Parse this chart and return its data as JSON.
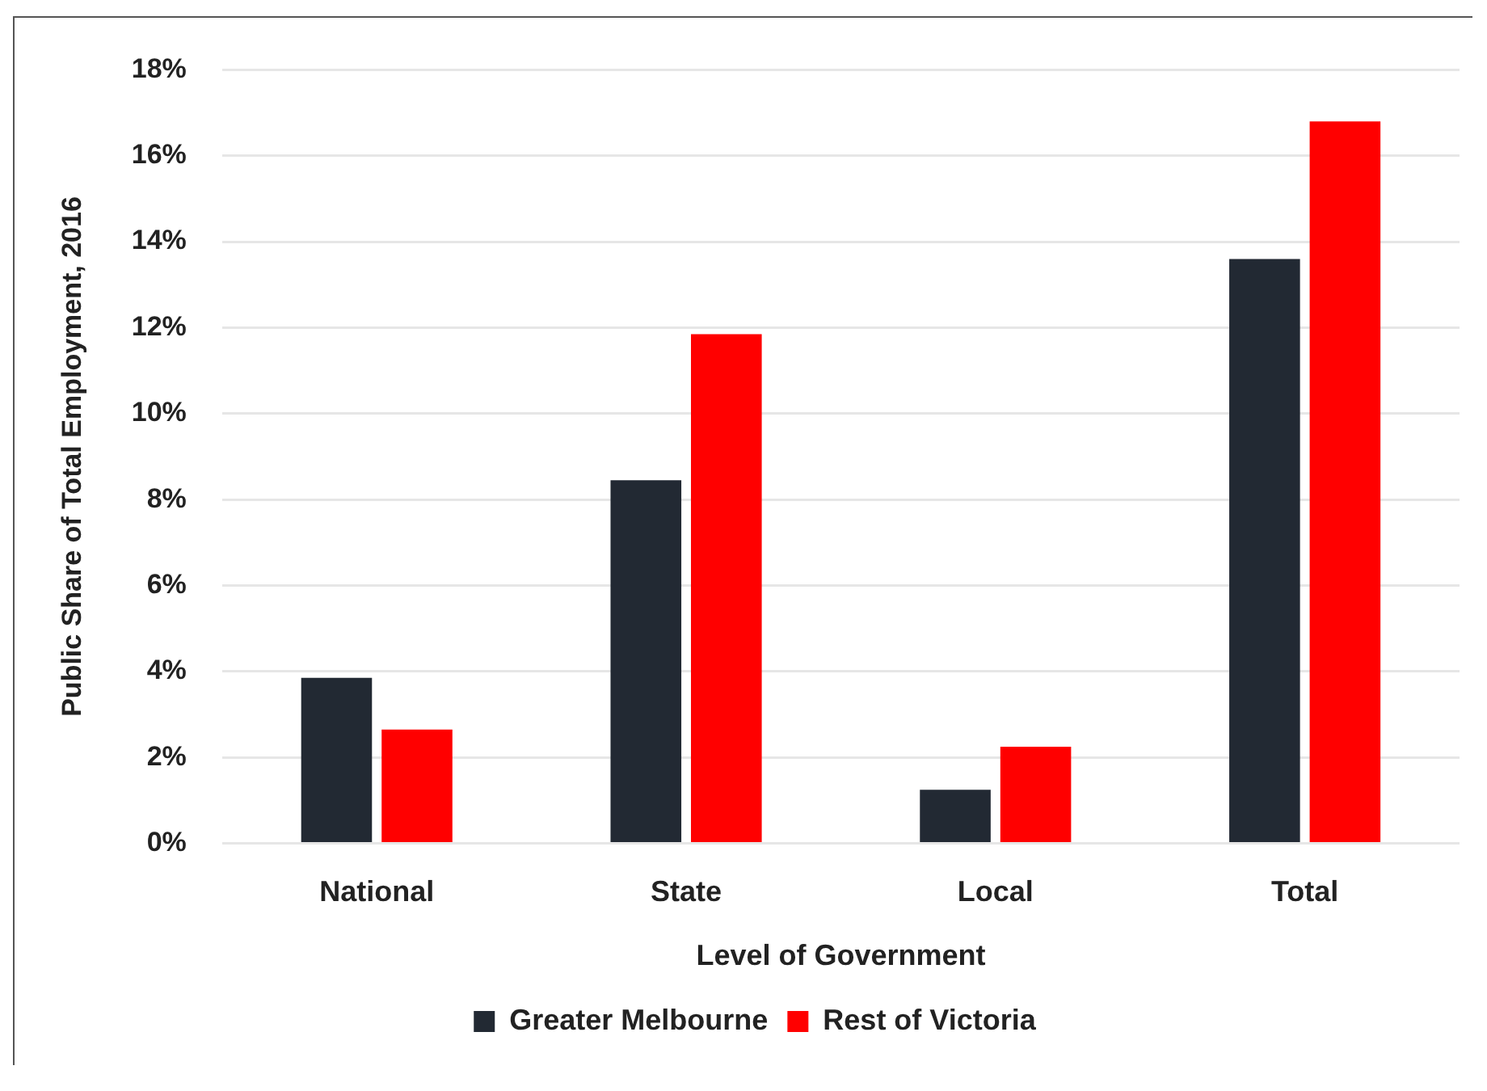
{
  "chart_data": {
    "type": "bar",
    "xlabel": "Level of Government",
    "ylabel": "Public Share of Total Employment, 2016",
    "categories": [
      "National",
      "State",
      "Local",
      "Total"
    ],
    "series": [
      {
        "name": "Greater Melbourne",
        "color": "#222933",
        "values": [
          3.85,
          8.45,
          1.25,
          13.6
        ]
      },
      {
        "name": "Rest of Victoria",
        "color": "#ff0000",
        "values": [
          2.65,
          11.85,
          2.25,
          16.8
        ]
      }
    ],
    "ylim": [
      0,
      18
    ],
    "yticks": [
      {
        "value": 0,
        "label": "0%"
      },
      {
        "value": 2,
        "label": "2%"
      },
      {
        "value": 4,
        "label": "4%"
      },
      {
        "value": 6,
        "label": "6%"
      },
      {
        "value": 8,
        "label": "8%"
      },
      {
        "value": 10,
        "label": "10%"
      },
      {
        "value": 12,
        "label": "12%"
      },
      {
        "value": 14,
        "label": "14%"
      },
      {
        "value": 16,
        "label": "16%"
      },
      {
        "value": 18,
        "label": "18%"
      }
    ],
    "grid": "y",
    "legend": "bottom"
  }
}
